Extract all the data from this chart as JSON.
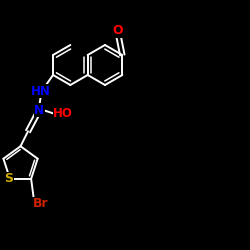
{
  "background_color": "#000000",
  "bond_color": "#ffffff",
  "atom_colors": {
    "O": "#ff0000",
    "N": "#0000ff",
    "S": "#ccaa00",
    "Br": "#cc2200",
    "C": "#ffffff",
    "H": "#ffffff"
  },
  "figsize": [
    2.5,
    2.5
  ],
  "dpi": 100
}
